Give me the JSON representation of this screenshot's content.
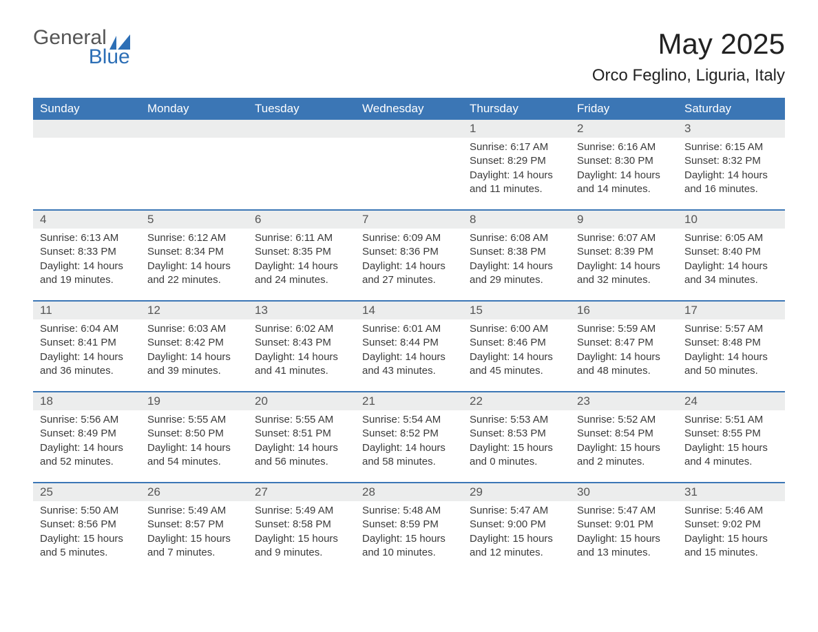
{
  "logo": {
    "line1": "General",
    "line2": "Blue"
  },
  "title": "May 2025",
  "subtitle": "Orco Feglino, Liguria, Italy",
  "colors": {
    "header_blue": "#3b76b5",
    "row_divider": "#3b76b5",
    "date_bg": "#eceded",
    "text_dark": "#3a3a3a",
    "logo_gray": "#555555",
    "logo_blue": "#2d6fb6",
    "page_bg": "#ffffff"
  },
  "weekdays": [
    "Sunday",
    "Monday",
    "Tuesday",
    "Wednesday",
    "Thursday",
    "Friday",
    "Saturday"
  ],
  "weeks": [
    [
      null,
      null,
      null,
      null,
      {
        "date": "1",
        "sunrise": "6:17 AM",
        "sunset": "8:29 PM",
        "daylight": "14 hours and 11 minutes."
      },
      {
        "date": "2",
        "sunrise": "6:16 AM",
        "sunset": "8:30 PM",
        "daylight": "14 hours and 14 minutes."
      },
      {
        "date": "3",
        "sunrise": "6:15 AM",
        "sunset": "8:32 PM",
        "daylight": "14 hours and 16 minutes."
      }
    ],
    [
      {
        "date": "4",
        "sunrise": "6:13 AM",
        "sunset": "8:33 PM",
        "daylight": "14 hours and 19 minutes."
      },
      {
        "date": "5",
        "sunrise": "6:12 AM",
        "sunset": "8:34 PM",
        "daylight": "14 hours and 22 minutes."
      },
      {
        "date": "6",
        "sunrise": "6:11 AM",
        "sunset": "8:35 PM",
        "daylight": "14 hours and 24 minutes."
      },
      {
        "date": "7",
        "sunrise": "6:09 AM",
        "sunset": "8:36 PM",
        "daylight": "14 hours and 27 minutes."
      },
      {
        "date": "8",
        "sunrise": "6:08 AM",
        "sunset": "8:38 PM",
        "daylight": "14 hours and 29 minutes."
      },
      {
        "date": "9",
        "sunrise": "6:07 AM",
        "sunset": "8:39 PM",
        "daylight": "14 hours and 32 minutes."
      },
      {
        "date": "10",
        "sunrise": "6:05 AM",
        "sunset": "8:40 PM",
        "daylight": "14 hours and 34 minutes."
      }
    ],
    [
      {
        "date": "11",
        "sunrise": "6:04 AM",
        "sunset": "8:41 PM",
        "daylight": "14 hours and 36 minutes."
      },
      {
        "date": "12",
        "sunrise": "6:03 AM",
        "sunset": "8:42 PM",
        "daylight": "14 hours and 39 minutes."
      },
      {
        "date": "13",
        "sunrise": "6:02 AM",
        "sunset": "8:43 PM",
        "daylight": "14 hours and 41 minutes."
      },
      {
        "date": "14",
        "sunrise": "6:01 AM",
        "sunset": "8:44 PM",
        "daylight": "14 hours and 43 minutes."
      },
      {
        "date": "15",
        "sunrise": "6:00 AM",
        "sunset": "8:46 PM",
        "daylight": "14 hours and 45 minutes."
      },
      {
        "date": "16",
        "sunrise": "5:59 AM",
        "sunset": "8:47 PM",
        "daylight": "14 hours and 48 minutes."
      },
      {
        "date": "17",
        "sunrise": "5:57 AM",
        "sunset": "8:48 PM",
        "daylight": "14 hours and 50 minutes."
      }
    ],
    [
      {
        "date": "18",
        "sunrise": "5:56 AM",
        "sunset": "8:49 PM",
        "daylight": "14 hours and 52 minutes."
      },
      {
        "date": "19",
        "sunrise": "5:55 AM",
        "sunset": "8:50 PM",
        "daylight": "14 hours and 54 minutes."
      },
      {
        "date": "20",
        "sunrise": "5:55 AM",
        "sunset": "8:51 PM",
        "daylight": "14 hours and 56 minutes."
      },
      {
        "date": "21",
        "sunrise": "5:54 AM",
        "sunset": "8:52 PM",
        "daylight": "14 hours and 58 minutes."
      },
      {
        "date": "22",
        "sunrise": "5:53 AM",
        "sunset": "8:53 PM",
        "daylight": "15 hours and 0 minutes."
      },
      {
        "date": "23",
        "sunrise": "5:52 AM",
        "sunset": "8:54 PM",
        "daylight": "15 hours and 2 minutes."
      },
      {
        "date": "24",
        "sunrise": "5:51 AM",
        "sunset": "8:55 PM",
        "daylight": "15 hours and 4 minutes."
      }
    ],
    [
      {
        "date": "25",
        "sunrise": "5:50 AM",
        "sunset": "8:56 PM",
        "daylight": "15 hours and 5 minutes."
      },
      {
        "date": "26",
        "sunrise": "5:49 AM",
        "sunset": "8:57 PM",
        "daylight": "15 hours and 7 minutes."
      },
      {
        "date": "27",
        "sunrise": "5:49 AM",
        "sunset": "8:58 PM",
        "daylight": "15 hours and 9 minutes."
      },
      {
        "date": "28",
        "sunrise": "5:48 AM",
        "sunset": "8:59 PM",
        "daylight": "15 hours and 10 minutes."
      },
      {
        "date": "29",
        "sunrise": "5:47 AM",
        "sunset": "9:00 PM",
        "daylight": "15 hours and 12 minutes."
      },
      {
        "date": "30",
        "sunrise": "5:47 AM",
        "sunset": "9:01 PM",
        "daylight": "15 hours and 13 minutes."
      },
      {
        "date": "31",
        "sunrise": "5:46 AM",
        "sunset": "9:02 PM",
        "daylight": "15 hours and 15 minutes."
      }
    ]
  ],
  "labels": {
    "sunrise_prefix": "Sunrise: ",
    "sunset_prefix": "Sunset: ",
    "daylight_prefix": "Daylight: "
  }
}
